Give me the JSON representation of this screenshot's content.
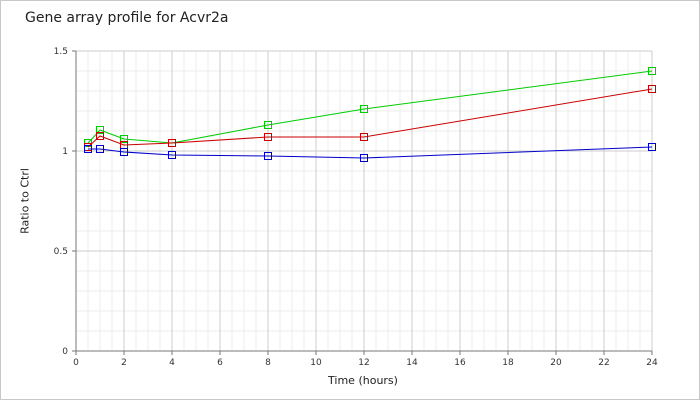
{
  "chart_data": {
    "type": "line",
    "title": "Gene array profile for Acvr2a",
    "xlabel": "Time (hours)",
    "ylabel": "Ratio to Ctrl",
    "xlim": [
      0,
      24
    ],
    "ylim": [
      0,
      1.5
    ],
    "xticks": [
      0,
      2,
      4,
      6,
      8,
      10,
      12,
      14,
      16,
      18,
      20,
      22,
      24
    ],
    "yticks": [
      0,
      0.5,
      1,
      1.5
    ],
    "grid": true,
    "legend": "none",
    "x": [
      0.5,
      1,
      2,
      4,
      8,
      12,
      24
    ],
    "series": [
      {
        "color": "#00cc00",
        "marker": "square",
        "values": [
          1.04,
          1.105,
          1.06,
          1.04,
          1.13,
          1.21,
          1.4
        ]
      },
      {
        "color": "#cc0000",
        "marker": "square",
        "values": [
          1.02,
          1.075,
          1.03,
          1.04,
          1.07,
          1.07,
          1.31
        ]
      },
      {
        "color": "#0000cc",
        "marker": "square",
        "values": [
          1.01,
          1.01,
          0.995,
          0.98,
          0.975,
          0.965,
          1.02
        ]
      }
    ]
  }
}
